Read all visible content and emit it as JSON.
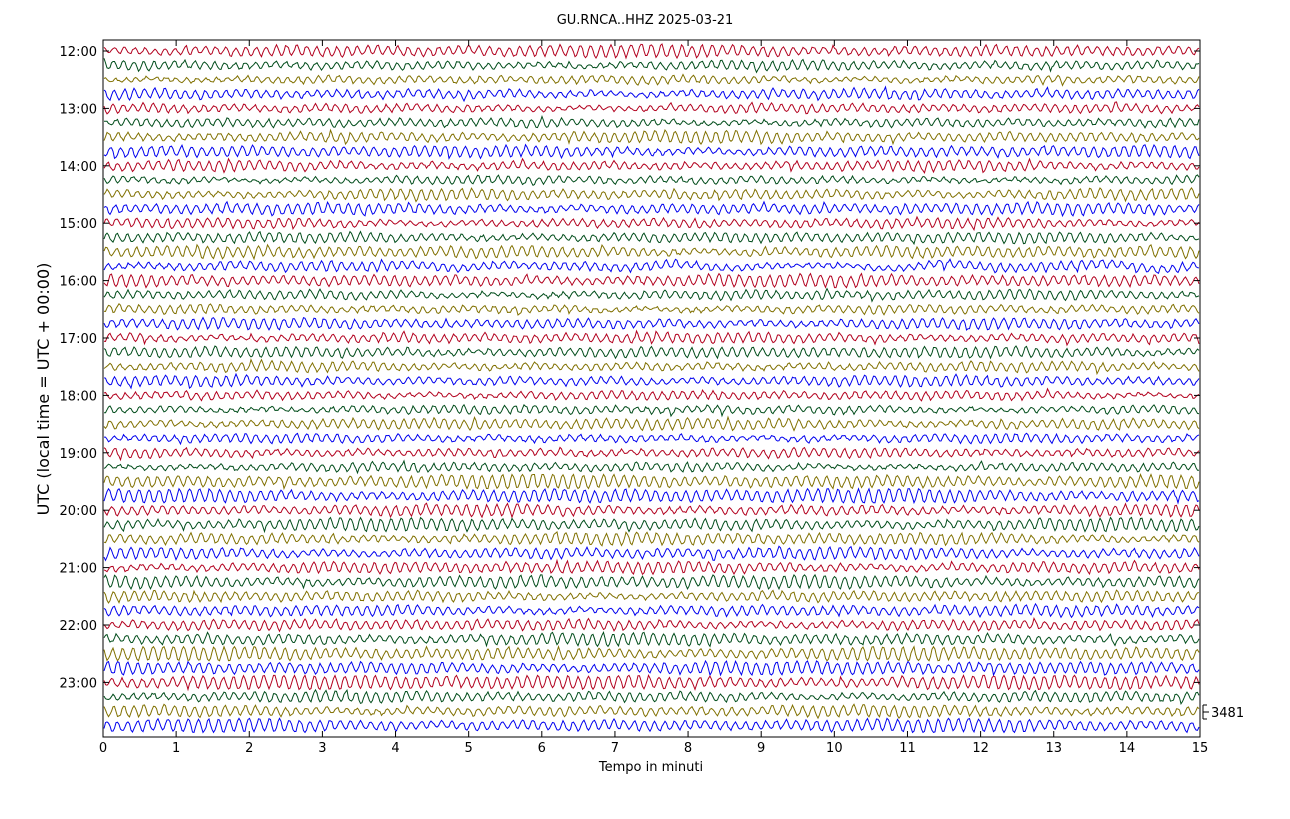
{
  "chart_data": {
    "type": "line",
    "title": "GU.RNCA..HHZ 2025-03-21",
    "xlabel": "Tempo in minuti",
    "ylabel": "UTC (local time = UTC + 00:00)",
    "xlim": [
      0,
      15
    ],
    "x_ticks": [
      "0",
      "1",
      "2",
      "3",
      "4",
      "5",
      "6",
      "7",
      "8",
      "9",
      "10",
      "11",
      "12",
      "13",
      "14",
      "15"
    ],
    "y_ticks": [
      "12:00",
      "13:00",
      "14:00",
      "15:00",
      "16:00",
      "17:00",
      "18:00",
      "19:00",
      "20:00",
      "21:00",
      "22:00",
      "23:00"
    ],
    "trace_start": "12:00",
    "trace_interval_minutes": 15,
    "trace_count": 48,
    "trace_colors": [
      "#b2001e",
      "#004c1a",
      "#807000",
      "#0000ee"
    ],
    "scale_label": "3481",
    "grid": false,
    "legend": "none"
  }
}
